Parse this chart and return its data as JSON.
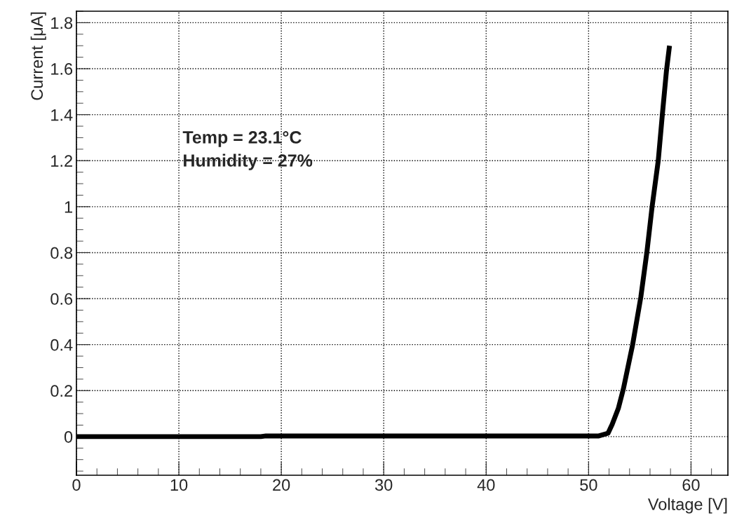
{
  "chart_data": {
    "type": "line",
    "xlabel": "Voltage [V]",
    "ylabel": "Current [μA]",
    "x": [
      0,
      18,
      18.5,
      51,
      51.9,
      52.3,
      52.9,
      53.4,
      54.3,
      55.1,
      55.7,
      56.2,
      56.8,
      57.2,
      57.6,
      57.9
    ],
    "series": [
      {
        "color": "#000000",
        "values": [
          0,
          0,
          0.003,
          0.003,
          0.015,
          0.053,
          0.122,
          0.208,
          0.4,
          0.607,
          0.805,
          1.0,
          1.2,
          1.4,
          1.59,
          1.7
        ]
      }
    ],
    "xlim": [
      0,
      63.6
    ],
    "ylim": [
      -0.168,
      1.85
    ],
    "xticks": [
      0,
      10,
      20,
      30,
      40,
      50,
      60
    ],
    "yticks": [
      0,
      0.2,
      0.4,
      0.6,
      0.8,
      1,
      1.2,
      1.4,
      1.6,
      1.8
    ],
    "annotations": [
      "Temp = 23.1°C",
      "Humidity = 27%"
    ],
    "grid": true,
    "marker": "none",
    "line_style": "solid"
  }
}
